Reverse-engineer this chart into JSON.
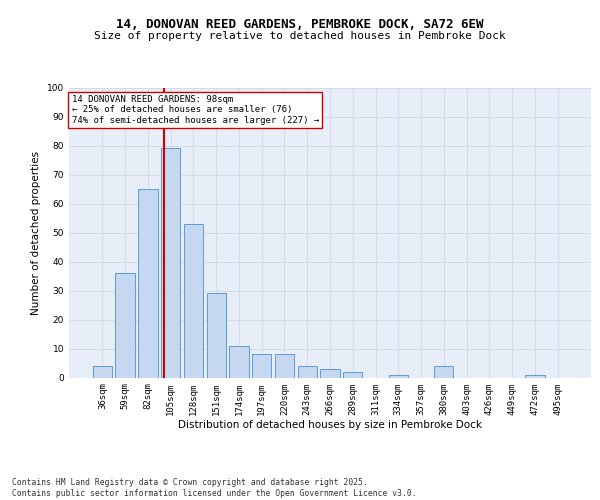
{
  "title1": "14, DONOVAN REED GARDENS, PEMBROKE DOCK, SA72 6EW",
  "title2": "Size of property relative to detached houses in Pembroke Dock",
  "xlabel": "Distribution of detached houses by size in Pembroke Dock",
  "ylabel": "Number of detached properties",
  "categories": [
    "36sqm",
    "59sqm",
    "82sqm",
    "105sqm",
    "128sqm",
    "151sqm",
    "174sqm",
    "197sqm",
    "220sqm",
    "243sqm",
    "266sqm",
    "289sqm",
    "311sqm",
    "334sqm",
    "357sqm",
    "380sqm",
    "403sqm",
    "426sqm",
    "449sqm",
    "472sqm",
    "495sqm"
  ],
  "values": [
    4,
    36,
    65,
    79,
    53,
    29,
    11,
    8,
    8,
    4,
    3,
    2,
    0,
    1,
    0,
    4,
    0,
    0,
    0,
    1,
    0
  ],
  "bar_color": "#c5d8f0",
  "bar_edge_color": "#5b9bd5",
  "vline_color": "#cc0000",
  "annotation_text": "14 DONOVAN REED GARDENS: 98sqm\n← 25% of detached houses are smaller (76)\n74% of semi-detached houses are larger (227) →",
  "annotation_box_color": "#ffffff",
  "annotation_box_edge": "#cc0000",
  "ylim": [
    0,
    100
  ],
  "yticks": [
    0,
    10,
    20,
    30,
    40,
    50,
    60,
    70,
    80,
    90,
    100
  ],
  "grid_color": "#d0d8e8",
  "bg_color": "#e8eef8",
  "footer": "Contains HM Land Registry data © Crown copyright and database right 2025.\nContains public sector information licensed under the Open Government Licence v3.0.",
  "title_fontsize": 9,
  "subtitle_fontsize": 8,
  "axis_label_fontsize": 7.5,
  "tick_fontsize": 6.5,
  "annotation_fontsize": 6.5,
  "footer_fontsize": 5.8
}
